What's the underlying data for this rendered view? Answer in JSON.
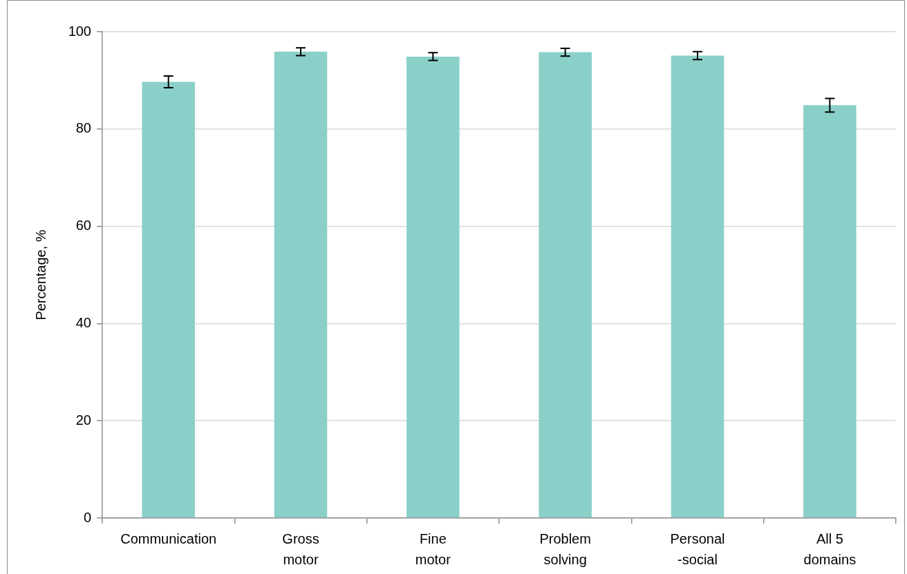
{
  "chart_data": {
    "type": "bar",
    "ylabel": "Percentage, %",
    "categories": [
      "Communication",
      "Gross\nmotor",
      "Fine\nmotor",
      "Problem\nsolving",
      "Personal\n-social",
      "All 5\ndomains"
    ],
    "values": [
      89.7,
      95.9,
      94.9,
      95.8,
      95.1,
      84.9
    ],
    "errors": [
      1.2,
      0.8,
      0.8,
      0.8,
      0.8,
      1.4
    ],
    "color": "#8ad0c8",
    "ylim": [
      0,
      100
    ],
    "yticks": [
      0,
      20,
      40,
      60,
      80,
      100
    ],
    "grid": "y"
  }
}
